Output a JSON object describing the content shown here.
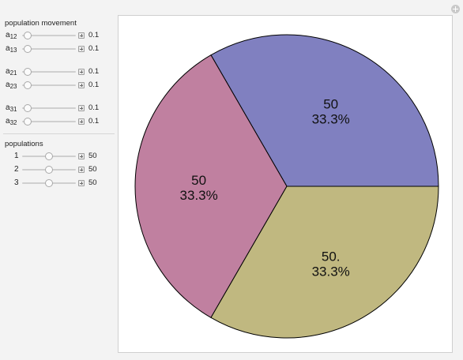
{
  "controls": {
    "movement_title": "population movement",
    "populations_title": "populations",
    "movement": [
      {
        "base": "a",
        "sub": "12",
        "value": "0.1",
        "fraction": 0.1
      },
      {
        "base": "a",
        "sub": "13",
        "value": "0.1",
        "fraction": 0.1
      },
      {
        "base": "a",
        "sub": "21",
        "value": "0.1",
        "fraction": 0.1
      },
      {
        "base": "a",
        "sub": "23",
        "value": "0.1",
        "fraction": 0.1
      },
      {
        "base": "a",
        "sub": "31",
        "value": "0.1",
        "fraction": 0.1
      },
      {
        "base": "a",
        "sub": "32",
        "value": "0.1",
        "fraction": 0.1
      }
    ],
    "populations": [
      {
        "label": "1",
        "value": "50",
        "fraction": 0.5
      },
      {
        "label": "2",
        "value": "50",
        "fraction": 0.5
      },
      {
        "label": "3",
        "value": "50",
        "fraction": 0.5
      }
    ]
  },
  "chart_data": {
    "type": "pie",
    "slices": [
      {
        "value": 50,
        "value_label": "50",
        "percent_label": "33.3%",
        "color": "#8080c0"
      },
      {
        "value": 50,
        "value_label": "50",
        "percent_label": "33.3%",
        "color": "#c080a0"
      },
      {
        "value": 50,
        "value_label": "50.",
        "percent_label": "33.3%",
        "color": "#c0b880"
      }
    ],
    "start_angle_deg": 0,
    "direction": "counterclockwise",
    "title": "",
    "legend": "none"
  }
}
